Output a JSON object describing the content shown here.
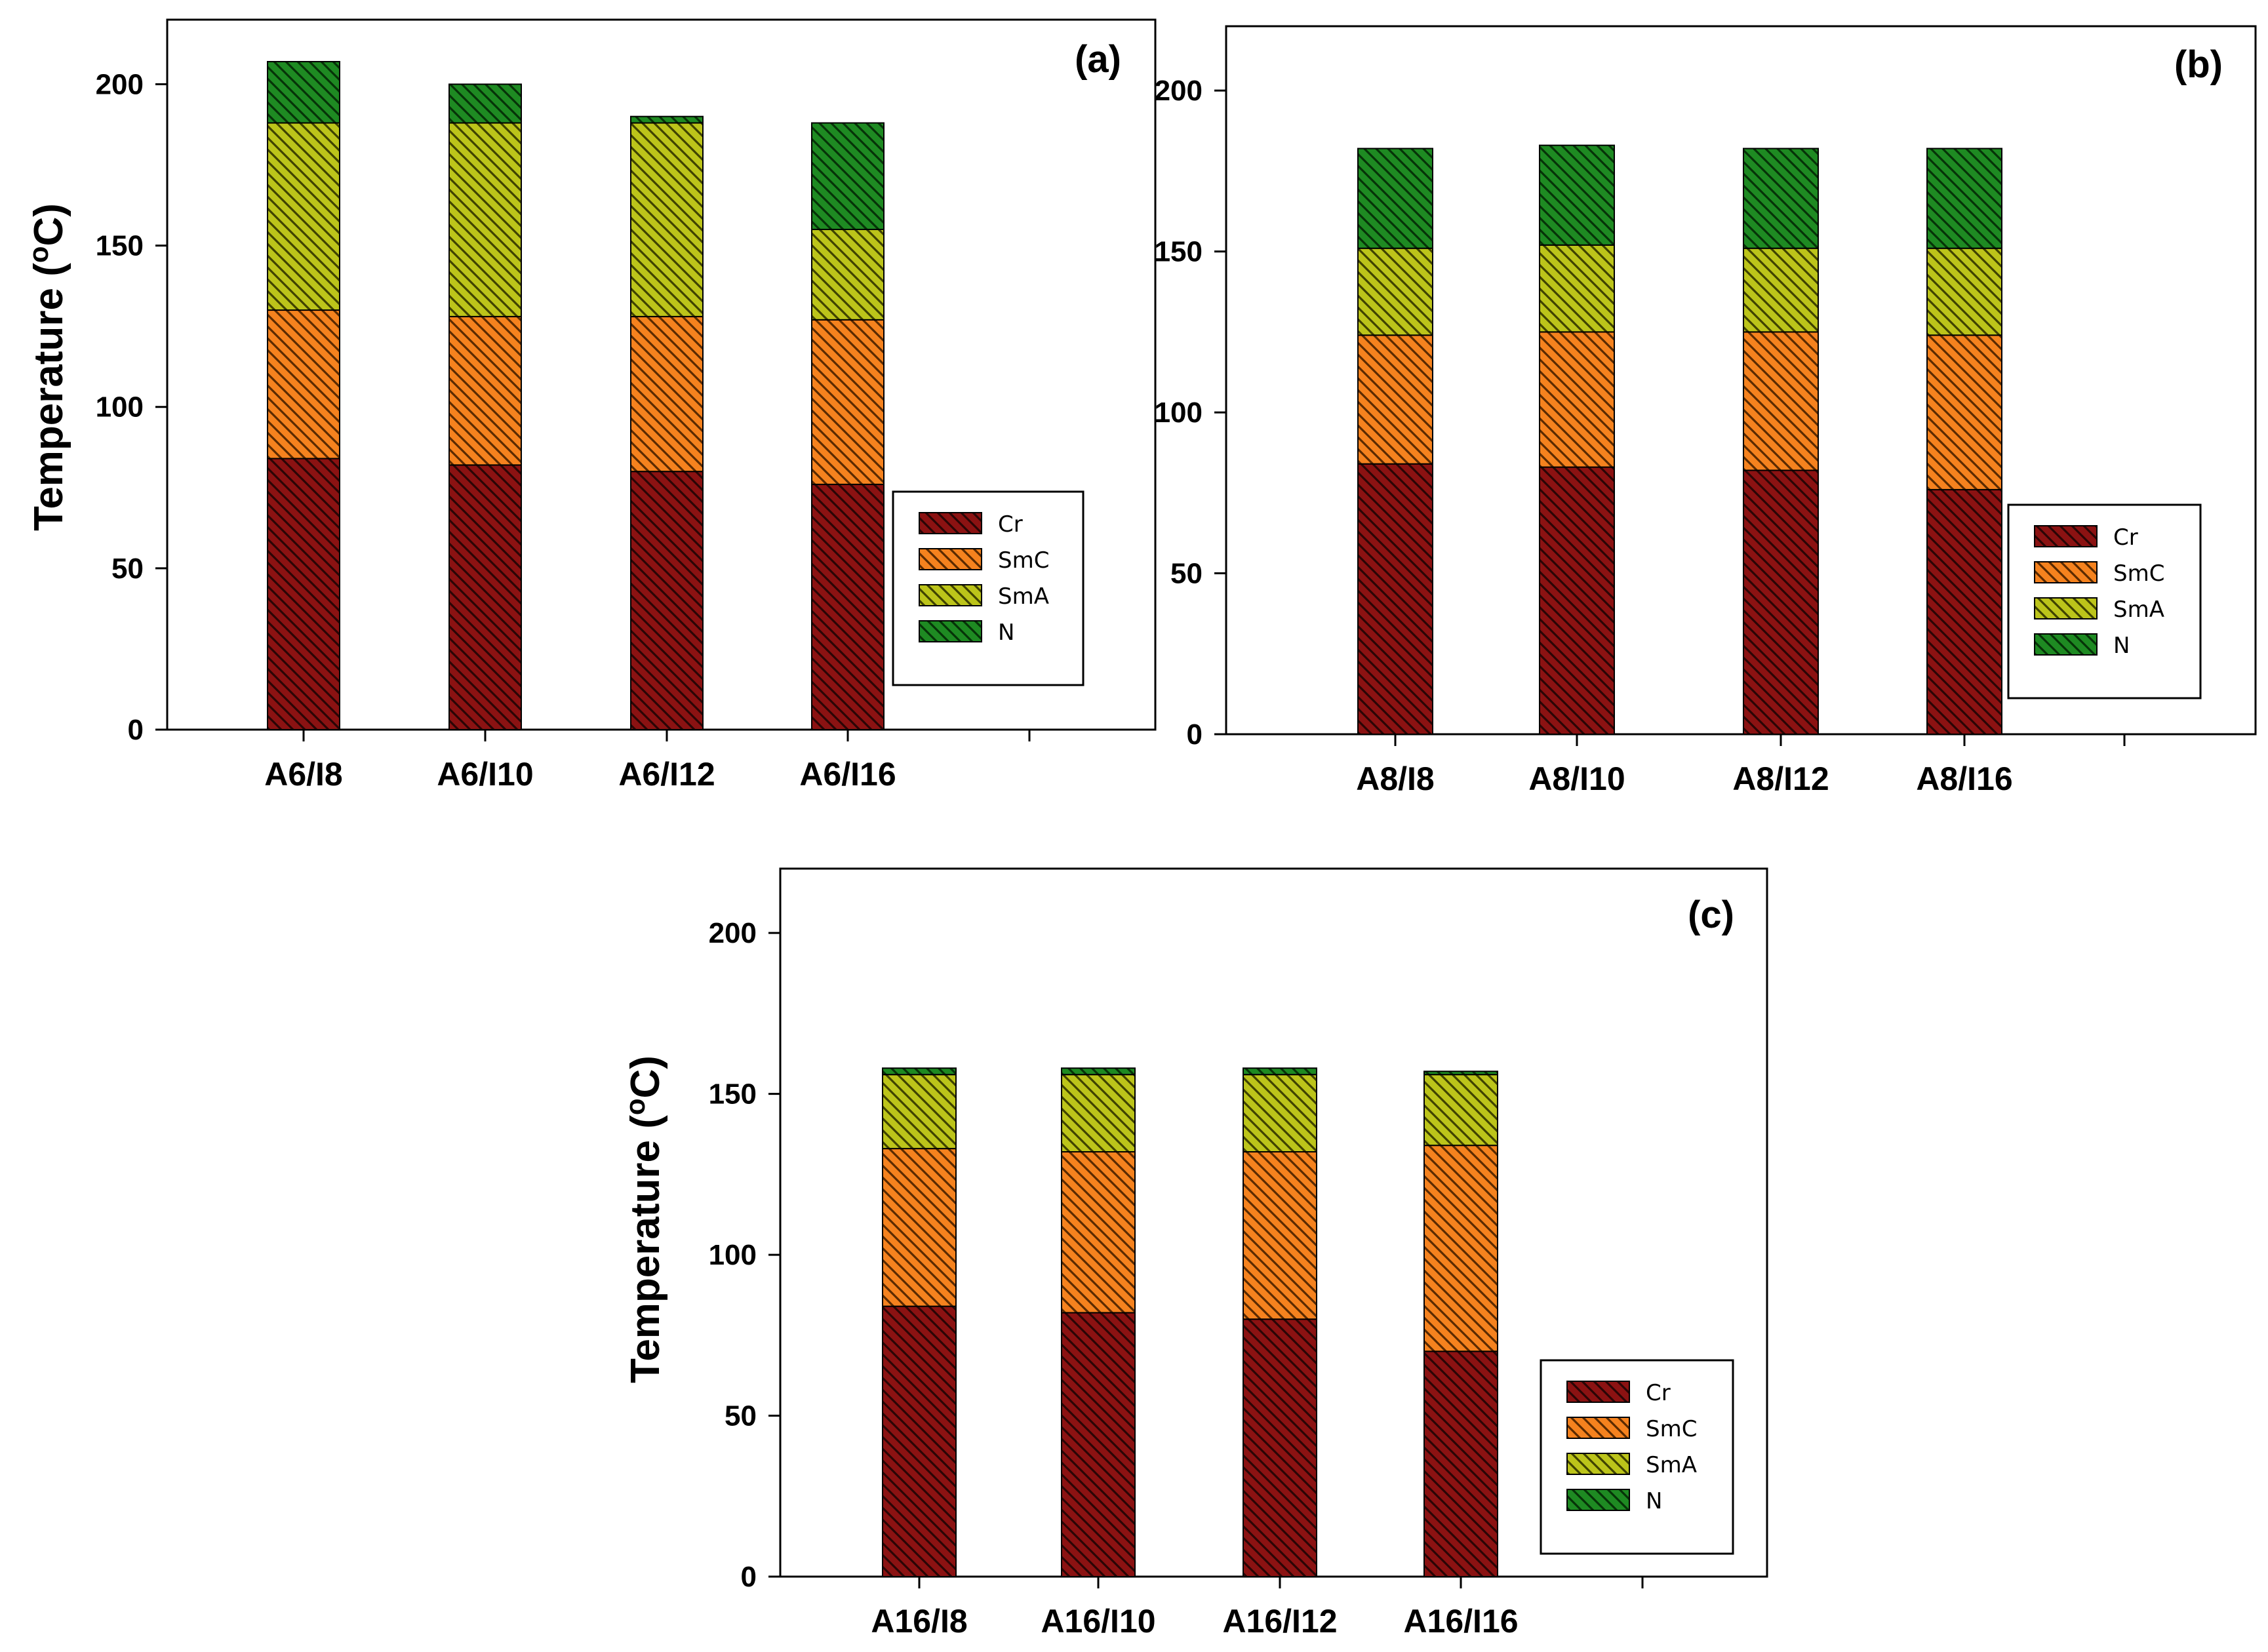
{
  "series_style": [
    {
      "name": "Cr",
      "color": "#8B1212",
      "hatch": "#2a0505"
    },
    {
      "name": "SmC",
      "color": "#F5821E",
      "hatch": "#5a2a00"
    },
    {
      "name": "SmA",
      "color": "#BCC41A",
      "hatch": "#3f4200"
    },
    {
      "name": "N",
      "color": "#1E8A22",
      "hatch": "#063308"
    }
  ],
  "chart_data": [
    {
      "panel": "(a)",
      "type": "bar",
      "stacked": true,
      "categories": [
        "A6/I8",
        "A6/I10",
        "A6/I12",
        "A6/I16"
      ],
      "ylabel": "Temperature (",
      "ylabel_sup": "o",
      "ylabel_end": "C)",
      "ylim": [
        0,
        220
      ],
      "yticks": [
        0,
        50,
        100,
        150,
        200
      ],
      "legend_position": "right",
      "series": [
        {
          "name": "Cr",
          "values": [
            84,
            82,
            80,
            76
          ]
        },
        {
          "name": "SmC",
          "values": [
            46,
            46,
            48,
            51
          ]
        },
        {
          "name": "SmA",
          "values": [
            58,
            60,
            60,
            28
          ]
        },
        {
          "name": "N",
          "values": [
            19,
            12,
            2,
            33
          ]
        }
      ]
    },
    {
      "panel": "(b)",
      "type": "bar",
      "stacked": true,
      "categories": [
        "A8/I8",
        "A8/I10",
        "A8/I12",
        "A8/I16"
      ],
      "ylabel": "",
      "ylabel_sup": "",
      "ylabel_end": "",
      "ylim": [
        0,
        220
      ],
      "yticks": [
        0,
        50,
        100,
        150,
        200
      ],
      "legend_position": "right",
      "series": [
        {
          "name": "Cr",
          "values": [
            84,
            83,
            82,
            76
          ]
        },
        {
          "name": "SmC",
          "values": [
            40,
            42,
            43,
            48
          ]
        },
        {
          "name": "SmA",
          "values": [
            27,
            27,
            26,
            27
          ]
        },
        {
          "name": "N",
          "values": [
            31,
            31,
            31,
            31
          ]
        }
      ]
    },
    {
      "panel": "(c)",
      "type": "bar",
      "stacked": true,
      "categories": [
        "A16/I8",
        "A16/I10",
        "A16/I12",
        "A16/I16"
      ],
      "ylabel": "Temperature (",
      "ylabel_sup": "o",
      "ylabel_end": "C)",
      "ylim": [
        0,
        220
      ],
      "yticks": [
        0,
        50,
        100,
        150,
        200
      ],
      "legend_position": "right",
      "series": [
        {
          "name": "Cr",
          "values": [
            84,
            82,
            80,
            70
          ]
        },
        {
          "name": "SmC",
          "values": [
            49,
            50,
            52,
            64
          ]
        },
        {
          "name": "SmA",
          "values": [
            23,
            24,
            24,
            22
          ]
        },
        {
          "name": "N",
          "values": [
            2,
            2,
            2,
            1
          ]
        }
      ]
    }
  ]
}
